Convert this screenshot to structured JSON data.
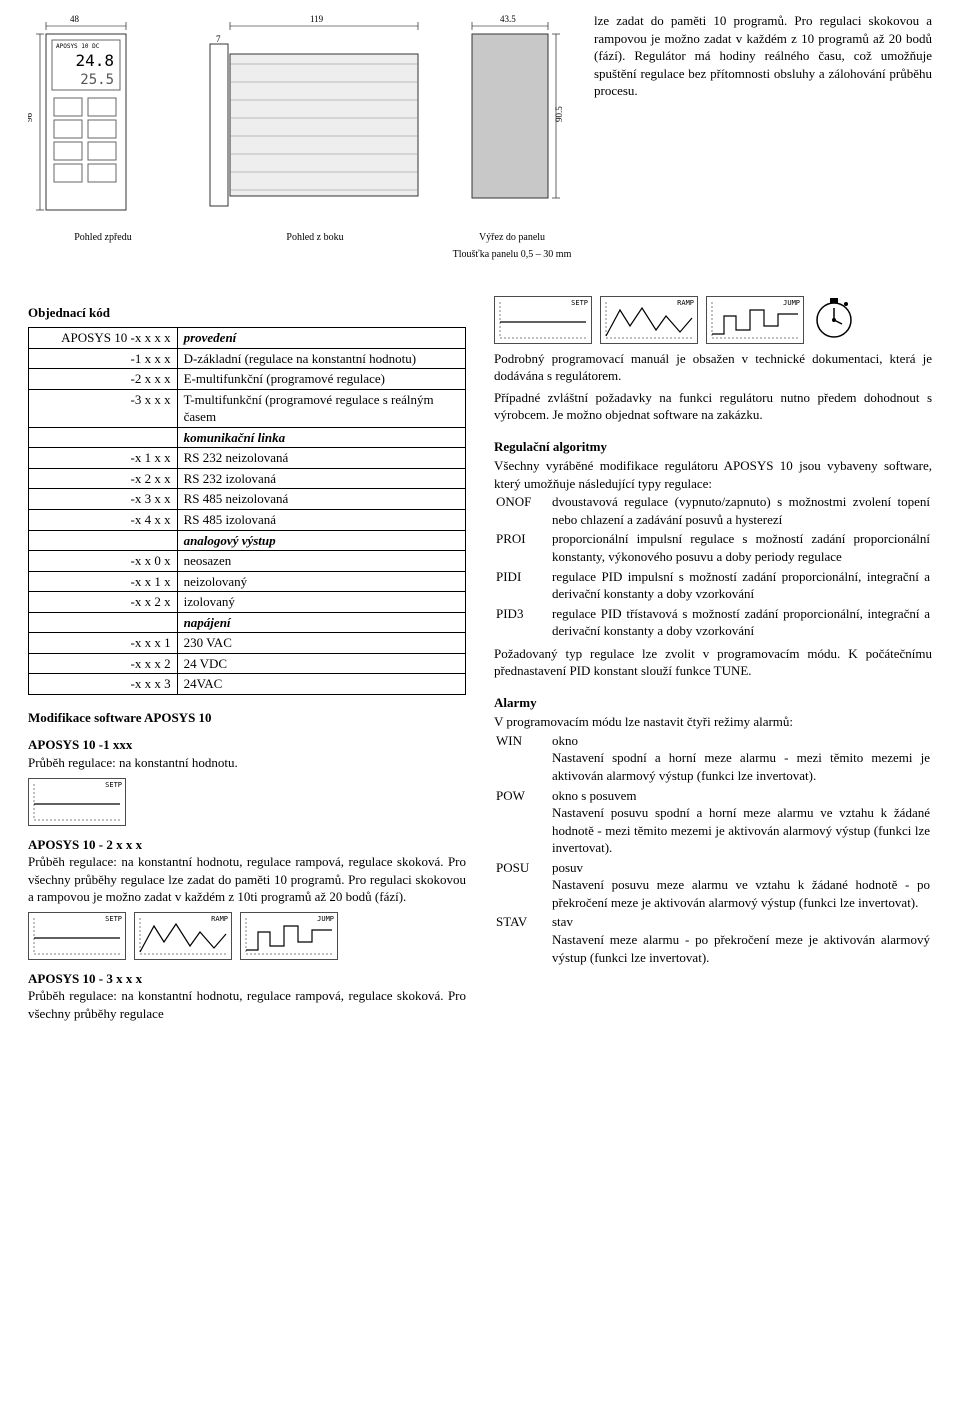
{
  "diagram": {
    "front_label": "Pohled zpředu",
    "side_label": "Pohled z boku",
    "cut_label": "Výřez do panelu",
    "thickness_label": "Tloušťka panelu 0,5 – 30 mm",
    "dim_w": "48",
    "dim_h": "96",
    "dim_depth": "119",
    "dim_front": "7",
    "dim_cut_w": "43.5",
    "dim_cut_h": "90.5",
    "device_name": "APOSYS 10 DC",
    "display_top": "24.8",
    "display_bot": "25.5"
  },
  "intro": "lze zadat do paměti 10 programů. Pro regulaci skokovou a rampovou je možno zadat v každém z 10 programů až 20 bodů (fází). Regulátor má hodiny reálného času, což umožňuje spuštění regulace bez přítomnosti obsluhy a zálohování průběhu procesu.",
  "wave_labels": {
    "setp": "SETP",
    "ramp": "RAMP",
    "jump": "JUMP"
  },
  "order": {
    "title": "Objednací kód",
    "rows": [
      [
        "APOSYS 10 -x x x x",
        "provedení",
        true
      ],
      [
        "-1 x x x",
        "D-základní (regulace na konstantní hodnotu)",
        false
      ],
      [
        "-2 x x x",
        "E-multifunkční (programové regulace)",
        false
      ],
      [
        "-3 x x x",
        "T-multifunkční (programové regulace s reálným časem",
        false
      ],
      [
        "",
        "komunikační linka",
        true
      ],
      [
        "-x 1 x x",
        "RS 232 neizolovaná",
        false
      ],
      [
        "-x 2 x x",
        "RS 232 izolovaná",
        false
      ],
      [
        "-x 3 x x",
        "RS 485 neizolovaná",
        false
      ],
      [
        "-x 4 x x",
        "RS 485 izolovaná",
        false
      ],
      [
        "",
        "analogový výstup",
        true
      ],
      [
        "-x x 0 x",
        "neosazen",
        false
      ],
      [
        "-x x 1 x",
        "neizolovaný",
        false
      ],
      [
        "-x x 2 x",
        "izolovaný",
        false
      ],
      [
        "",
        "napájení",
        true
      ],
      [
        "-x x x 1",
        "230 VAC",
        false
      ],
      [
        "-x x x 2",
        "24 VDC",
        false
      ],
      [
        "-x x x 3",
        "24VAC",
        false
      ]
    ]
  },
  "modif": {
    "title": "Modifikace software APOSYS 10",
    "a1_title": "APOSYS 10 -1 xxx",
    "a1_text": "Průběh regulace: na konstantní hodnotu.",
    "a2_title": "APOSYS 10 - 2 x x x",
    "a2_text": "Průběh regulace: na konstantní hodnotu, regulace rampová, regulace skoková. Pro všechny průběhy regulace lze zadat do paměti 10 programů. Pro regulaci skokovou a rampovou je možno zadat v každém z 10ti programů až 20 bodů (fází).",
    "a3_title": "APOSYS 10 - 3 x x x",
    "a3_text": "Průběh regulace: na konstantní hodnotu, regulace rampová, regulace skoková. Pro všechny průběhy regulace"
  },
  "right": {
    "p1": "Podrobný programovací manuál je obsažen v technické dokumentaci, která je dodávána s regulátorem.",
    "p2": "Případné zvláštní požadavky na funkci regulátoru nutno předem dohodnout s výrobcem. Je možno objednat software na zakázku.",
    "reg_title": "Regulační algoritmy",
    "reg_intro": "Všechny vyráběné modifikace regulátoru APOSYS 10 jsou vybaveny software, který umožňuje následující typy regulace:",
    "reg_rows": [
      [
        "ONOF",
        "dvoustavová regulace (vypnuto/zapnuto) s možnostmi zvolení topení nebo chlazení a zadávání posuvů a hysterezí"
      ],
      [
        "PROI",
        "proporcionální impulsní regulace s možností zadání proporcionální konstanty, výkonového posuvu a doby periody regulace"
      ],
      [
        "PIDI",
        "regulace PID impulsní s možností zadání proporcionální, integrační a derivační konstanty a doby vzorkování"
      ],
      [
        "PID3",
        "regulace PID třístavová s možností zadání proporcionální, integrační a derivační konstanty a doby vzorkování"
      ]
    ],
    "reg_foot": "Požadovaný typ regulace lze zvolit v programovacím módu. K počátečnímu přednastavení PID konstant slouží funkce TUNE.",
    "alarm_title": "Alarmy",
    "alarm_intro": "V programovacím módu lze nastavit čtyři režimy alarmů:",
    "alarm_rows": [
      [
        "WIN",
        "okno\nNastavení spodní a horní meze alarmu - mezi těmito mezemi je aktivován alarmový výstup (funkci lze invertovat)."
      ],
      [
        "POW",
        "okno s posuvem\nNastavení posuvu spodní a horní meze alarmu ve vztahu k žádané hodnotě - mezi těmito mezemi je aktivován alarmový výstup (funkci lze invertovat)."
      ],
      [
        "POSU",
        "posuv\nNastavení posuvu meze alarmu ve vztahu k žádané hodnotě - po překročení meze je aktivován alarmový výstup (funkci lze invertovat)."
      ],
      [
        "STAV",
        "stav\nNastavení meze alarmu - po překročení meze je aktivován alarmový výstup (funkci lze invertovat)."
      ]
    ]
  }
}
